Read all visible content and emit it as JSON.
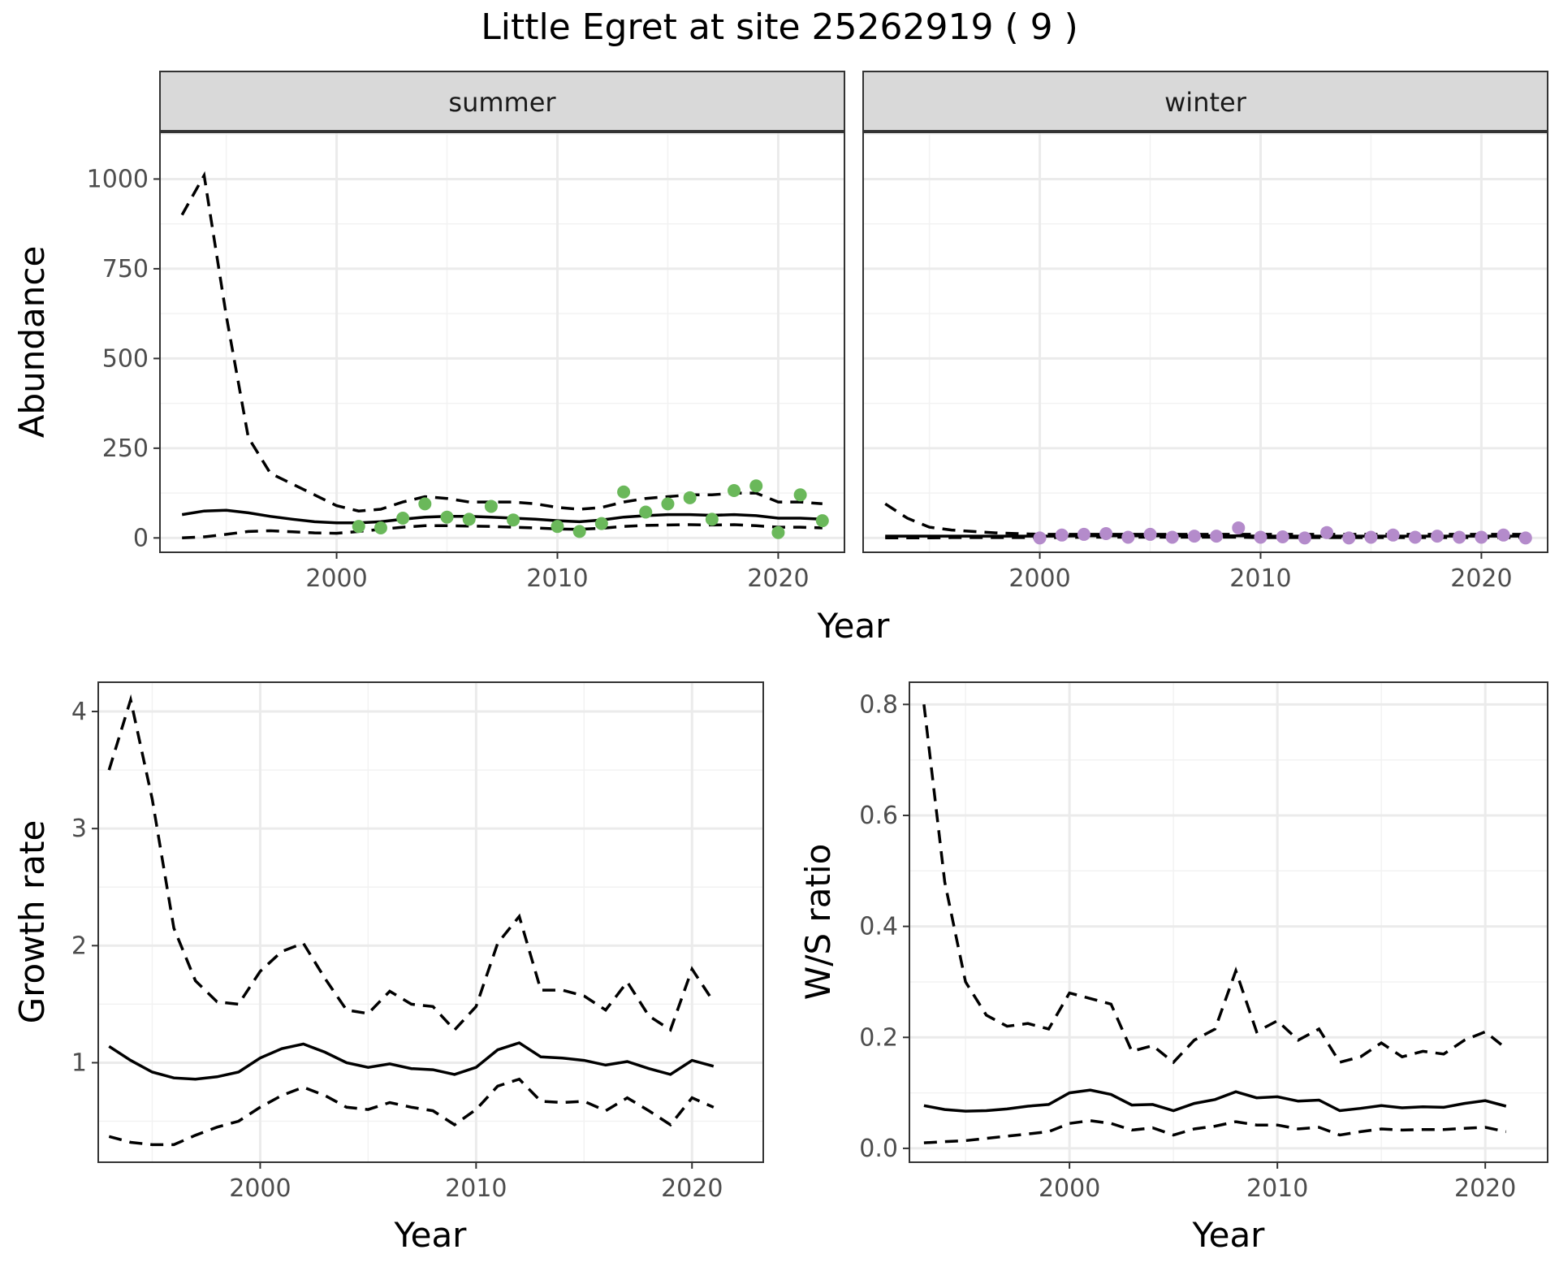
{
  "title": "Little Egret at site 25262919 ( 9 )",
  "colors": {
    "summer_points": "#6ab85a",
    "winter_points": "#b48bcb",
    "strip_fill": "#d9d9d9",
    "line": "#000000"
  },
  "chart_data": [
    {
      "id": "abundance",
      "type": "line",
      "ylabel": "Abundance",
      "xlabel": "Year",
      "xlim": [
        1992,
        2023
      ],
      "ylim": [
        -40,
        1130
      ],
      "xticks": [
        2000,
        2010,
        2020
      ],
      "yticks": [
        0,
        250,
        500,
        750,
        1000
      ],
      "facets": [
        {
          "strip": "summer",
          "point_color": "#6ab85a",
          "mean": {
            "x": [
              1993,
              1994,
              1995,
              1996,
              1997,
              1998,
              1999,
              2000,
              2001,
              2002,
              2003,
              2004,
              2005,
              2006,
              2007,
              2008,
              2009,
              2010,
              2011,
              2012,
              2013,
              2014,
              2015,
              2016,
              2017,
              2018,
              2019,
              2020,
              2021,
              2022
            ],
            "y": [
              65,
              75,
              77,
              70,
              60,
              52,
              45,
              42,
              42,
              45,
              52,
              58,
              60,
              60,
              58,
              55,
              52,
              48,
              45,
              50,
              58,
              62,
              65,
              65,
              63,
              65,
              62,
              55,
              55,
              52
            ]
          },
          "upper": {
            "x": [
              1993,
              1994,
              1995,
              1996,
              1997,
              1998,
              1999,
              2000,
              2001,
              2002,
              2003,
              2004,
              2005,
              2006,
              2007,
              2008,
              2009,
              2010,
              2011,
              2012,
              2013,
              2014,
              2015,
              2016,
              2017,
              2018,
              2019,
              2020,
              2021,
              2022
            ],
            "y": [
              900,
              1010,
              620,
              280,
              180,
              150,
              120,
              90,
              75,
              80,
              100,
              115,
              110,
              100,
              100,
              100,
              95,
              85,
              80,
              85,
              100,
              110,
              115,
              120,
              120,
              125,
              125,
              100,
              100,
              95
            ]
          },
          "lower": {
            "x": [
              1993,
              1994,
              1995,
              1996,
              1997,
              1998,
              1999,
              2000,
              2001,
              2002,
              2003,
              2004,
              2005,
              2006,
              2007,
              2008,
              2009,
              2010,
              2011,
              2012,
              2013,
              2014,
              2015,
              2016,
              2017,
              2018,
              2019,
              2020,
              2021,
              2022
            ],
            "y": [
              0,
              3,
              10,
              18,
              20,
              17,
              14,
              13,
              18,
              24,
              30,
              34,
              34,
              33,
              32,
              30,
              28,
              25,
              24,
              27,
              32,
              35,
              36,
              37,
              36,
              37,
              34,
              30,
              30,
              28
            ]
          },
          "points": {
            "x": [
              2001,
              2002,
              2003,
              2004,
              2005,
              2006,
              2007,
              2008,
              2010,
              2011,
              2012,
              2013,
              2014,
              2015,
              2016,
              2017,
              2018,
              2019,
              2020,
              2021,
              2022
            ],
            "y": [
              32,
              28,
              55,
              95,
              58,
              52,
              88,
              50,
              32,
              18,
              40,
              128,
              72,
              95,
              112,
              52,
              132,
              145,
              15,
              120,
              48
            ]
          }
        },
        {
          "strip": "winter",
          "point_color": "#b48bcb",
          "mean": {
            "x": [
              1993,
              1994,
              1995,
              1996,
              1997,
              1998,
              1999,
              2000,
              2001,
              2002,
              2003,
              2004,
              2005,
              2006,
              2007,
              2008,
              2009,
              2010,
              2011,
              2012,
              2013,
              2014,
              2015,
              2016,
              2017,
              2018,
              2019,
              2020,
              2021,
              2022
            ],
            "y": [
              5,
              5,
              5,
              5,
              5,
              5,
              5,
              5,
              5,
              6,
              6,
              6,
              6,
              6,
              6,
              6,
              6,
              5,
              5,
              5,
              5,
              5,
              5,
              5,
              5,
              5,
              5,
              5,
              5,
              5
            ]
          },
          "upper": {
            "x": [
              1993,
              1994,
              1995,
              1996,
              1997,
              1998,
              1999,
              2000,
              2001,
              2002,
              2003,
              2004,
              2005,
              2006,
              2007,
              2008,
              2009,
              2010,
              2011,
              2012,
              2013,
              2014,
              2015,
              2016,
              2017,
              2018,
              2019,
              2020,
              2021,
              2022
            ],
            "y": [
              95,
              55,
              30,
              22,
              18,
              14,
              12,
              10,
              10,
              10,
              10,
              10,
              10,
              10,
              10,
              10,
              10,
              10,
              10,
              10,
              10,
              10,
              10,
              10,
              10,
              10,
              10,
              10,
              10,
              10
            ]
          },
          "lower": {
            "x": [
              1993,
              1994,
              1995,
              1996,
              1997,
              1998,
              1999,
              2000,
              2001,
              2002,
              2003,
              2004,
              2005,
              2006,
              2007,
              2008,
              2009,
              2010,
              2011,
              2012,
              2013,
              2014,
              2015,
              2016,
              2017,
              2018,
              2019,
              2020,
              2021,
              2022
            ],
            "y": [
              0,
              0,
              0,
              1,
              1,
              1,
              1,
              1,
              1,
              2,
              2,
              2,
              2,
              2,
              2,
              2,
              2,
              1,
              1,
              1,
              1,
              1,
              1,
              1,
              1,
              1,
              1,
              1,
              1,
              1
            ]
          },
          "points": {
            "x": [
              2000,
              2001,
              2002,
              2003,
              2004,
              2005,
              2006,
              2007,
              2008,
              2009,
              2010,
              2011,
              2012,
              2013,
              2014,
              2015,
              2016,
              2017,
              2018,
              2019,
              2020,
              2021,
              2022
            ],
            "y": [
              0,
              8,
              10,
              12,
              2,
              10,
              2,
              5,
              5,
              28,
              2,
              3,
              0,
              15,
              0,
              2,
              8,
              2,
              5,
              2,
              2,
              8,
              0
            ]
          }
        }
      ]
    },
    {
      "id": "growth",
      "type": "line",
      "ylabel": "Growth rate",
      "xlabel": "Year",
      "xlim": [
        1992.5,
        2023.3
      ],
      "ylim": [
        0.15,
        4.25
      ],
      "xticks": [
        2000,
        2010,
        2020
      ],
      "yticks": [
        1,
        2,
        3,
        4
      ],
      "mean": {
        "x": [
          1993,
          1994,
          1995,
          1996,
          1997,
          1998,
          1999,
          2000,
          2001,
          2002,
          2003,
          2004,
          2005,
          2006,
          2007,
          2008,
          2009,
          2010,
          2011,
          2012,
          2013,
          2014,
          2015,
          2016,
          2017,
          2018,
          2019,
          2020,
          2021
        ],
        "y": [
          1.14,
          1.02,
          0.92,
          0.87,
          0.86,
          0.88,
          0.92,
          1.04,
          1.12,
          1.16,
          1.09,
          1.0,
          0.96,
          0.99,
          0.95,
          0.94,
          0.9,
          0.96,
          1.11,
          1.17,
          1.05,
          1.04,
          1.02,
          0.98,
          1.01,
          0.95,
          0.9,
          1.02,
          0.97
        ]
      },
      "upper": {
        "x": [
          1993,
          1994,
          1995,
          1996,
          1997,
          1998,
          1999,
          2000,
          2001,
          2002,
          2003,
          2004,
          2005,
          2006,
          2007,
          2008,
          2009,
          2010,
          2011,
          2012,
          2013,
          2014,
          2015,
          2016,
          2017,
          2018,
          2019,
          2020,
          2021
        ],
        "y": [
          3.5,
          4.1,
          3.25,
          2.15,
          1.7,
          1.52,
          1.5,
          1.78,
          1.95,
          2.02,
          1.72,
          1.45,
          1.42,
          1.61,
          1.5,
          1.48,
          1.28,
          1.48,
          2.02,
          2.25,
          1.62,
          1.62,
          1.57,
          1.45,
          1.69,
          1.4,
          1.28,
          1.8,
          1.52
        ]
      },
      "lower": {
        "x": [
          1993,
          1994,
          1995,
          1996,
          1997,
          1998,
          1999,
          2000,
          2001,
          2002,
          2003,
          2004,
          2005,
          2006,
          2007,
          2008,
          2009,
          2010,
          2011,
          2012,
          2013,
          2014,
          2015,
          2016,
          2017,
          2018,
          2019,
          2020,
          2021
        ],
        "y": [
          0.37,
          0.32,
          0.3,
          0.3,
          0.38,
          0.45,
          0.5,
          0.62,
          0.72,
          0.79,
          0.72,
          0.62,
          0.6,
          0.66,
          0.62,
          0.59,
          0.47,
          0.6,
          0.8,
          0.86,
          0.67,
          0.66,
          0.67,
          0.59,
          0.7,
          0.59,
          0.47,
          0.7,
          0.62
        ]
      }
    },
    {
      "id": "ws_ratio",
      "type": "line",
      "ylabel": "W/S ratio",
      "xlabel": "Year",
      "xlim": [
        1992.3,
        2023.0
      ],
      "ylim": [
        -0.025,
        0.84
      ],
      "xticks": [
        2000,
        2010,
        2020
      ],
      "yticks": [
        0.0,
        0.2,
        0.4,
        0.6,
        0.8
      ],
      "ytick_labels": [
        "0.0",
        "0.2",
        "0.4",
        "0.6",
        "0.8"
      ],
      "mean": {
        "x": [
          1993,
          1994,
          1995,
          1996,
          1997,
          1998,
          1999,
          2000,
          2001,
          2002,
          2003,
          2004,
          2005,
          2006,
          2007,
          2008,
          2009,
          2010,
          2011,
          2012,
          2013,
          2014,
          2015,
          2016,
          2017,
          2018,
          2019,
          2020,
          2021
        ],
        "y": [
          0.077,
          0.07,
          0.067,
          0.068,
          0.071,
          0.076,
          0.079,
          0.1,
          0.105,
          0.097,
          0.078,
          0.079,
          0.068,
          0.081,
          0.088,
          0.102,
          0.091,
          0.093,
          0.085,
          0.087,
          0.068,
          0.072,
          0.077,
          0.073,
          0.075,
          0.074,
          0.081,
          0.086,
          0.076
        ]
      },
      "upper": {
        "x": [
          1993,
          1994,
          1995,
          1996,
          1997,
          1998,
          1999,
          2000,
          2001,
          2002,
          2003,
          2004,
          2005,
          2006,
          2007,
          2008,
          2009,
          2010,
          2011,
          2012,
          2013,
          2014,
          2015,
          2016,
          2017,
          2018,
          2019,
          2020,
          2021
        ],
        "y": [
          0.8,
          0.48,
          0.3,
          0.24,
          0.22,
          0.225,
          0.215,
          0.28,
          0.27,
          0.26,
          0.175,
          0.185,
          0.155,
          0.195,
          0.215,
          0.32,
          0.21,
          0.23,
          0.195,
          0.215,
          0.155,
          0.165,
          0.19,
          0.165,
          0.175,
          0.17,
          0.195,
          0.21,
          0.18
        ]
      },
      "lower": {
        "x": [
          1993,
          1994,
          1995,
          1996,
          1997,
          1998,
          1999,
          2000,
          2001,
          2002,
          2003,
          2004,
          2005,
          2006,
          2007,
          2008,
          2009,
          2010,
          2011,
          2012,
          2013,
          2014,
          2015,
          2016,
          2017,
          2018,
          2019,
          2020,
          2021
        ],
        "y": [
          0.01,
          0.012,
          0.014,
          0.018,
          0.022,
          0.026,
          0.03,
          0.045,
          0.05,
          0.045,
          0.033,
          0.037,
          0.024,
          0.035,
          0.04,
          0.048,
          0.042,
          0.042,
          0.035,
          0.038,
          0.024,
          0.03,
          0.035,
          0.033,
          0.034,
          0.034,
          0.036,
          0.038,
          0.03
        ]
      }
    }
  ]
}
